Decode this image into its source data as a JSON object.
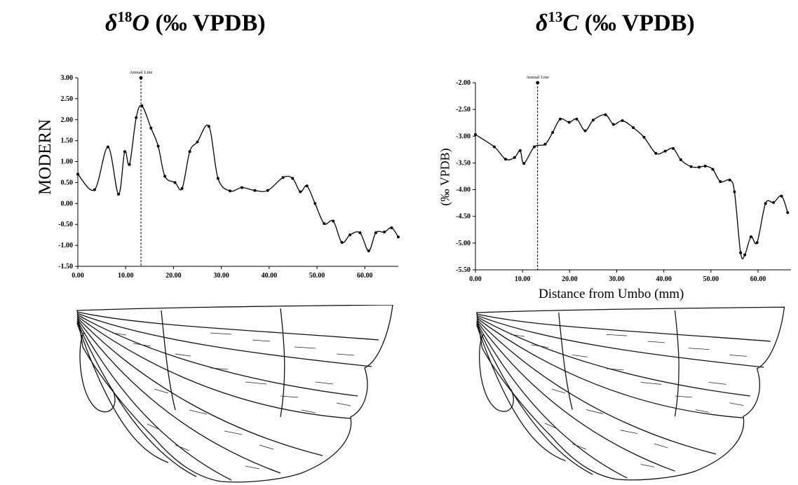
{
  "titles": {
    "left": {
      "symbol": "δ",
      "superscript": "18",
      "element": "O",
      "unit": "(‰ VPDB)"
    },
    "right": {
      "symbol": "δ",
      "superscript": "13",
      "element": "C",
      "unit": "(‰ VPDB)"
    }
  },
  "row_label": "MODERN",
  "colors": {
    "line": "#000000",
    "axis": "#000000",
    "background": "#ffffff"
  },
  "chart_data": [
    {
      "type": "line",
      "title": "δ18O (‰ VPDB)",
      "xlabel": "",
      "ylabel": "",
      "xlim": [
        0,
        67
      ],
      "ylim": [
        -1.5,
        3.0
      ],
      "xticks": [
        "0.00",
        "10.00",
        "20.00",
        "30.00",
        "40.00",
        "50.00",
        "60.00"
      ],
      "yticks": [
        "3.00",
        "2.50",
        "2.00",
        "1.50",
        "1.00",
        "0.50",
        "0.00",
        "-0.50",
        "-1.00",
        "-1.50"
      ],
      "grid": false,
      "annotation": {
        "label": "Annual Line",
        "x": 13.2,
        "top": 3.0
      },
      "series": [
        {
          "x": [
            0.0,
            3.5,
            6.3,
            8.5,
            9.8,
            10.8,
            12.2,
            13.4,
            15.3,
            16.8,
            18.2,
            20.3,
            21.8,
            23.4,
            25.0,
            27.4,
            29.3,
            31.8,
            34.3,
            37.0,
            39.7,
            42.9,
            44.9,
            46.5,
            47.9,
            49.6,
            51.5,
            53.4,
            55.2,
            56.9,
            59.0,
            60.8,
            62.3,
            64.1,
            65.6,
            67.0
          ],
          "y": [
            0.7,
            0.33,
            1.35,
            0.22,
            1.24,
            0.93,
            2.05,
            2.33,
            1.8,
            1.37,
            0.65,
            0.5,
            0.36,
            1.24,
            1.47,
            1.84,
            0.6,
            0.3,
            0.38,
            0.31,
            0.31,
            0.62,
            0.6,
            0.28,
            0.42,
            0.0,
            -0.48,
            -0.42,
            -0.93,
            -0.75,
            -0.7,
            -1.13,
            -0.7,
            -0.68,
            -0.58,
            -0.8
          ]
        }
      ]
    },
    {
      "type": "line",
      "title": "δ13C (‰ VPDB)",
      "xlabel": "Distance from Umbo (mm)",
      "ylabel": "(‰ VPDB)",
      "xlim": [
        0,
        67
      ],
      "ylim": [
        -5.5,
        -2.0
      ],
      "xticks": [
        "0.00",
        "10.00",
        "20.00",
        "30.00",
        "40.00",
        "50.00",
        "60.00"
      ],
      "yticks": [
        "-2.00",
        "-2.50",
        "-3.00",
        "-3.50",
        "-4.00",
        "-4.50",
        "-5.00",
        "-5.50"
      ],
      "grid": false,
      "annotation": {
        "label": "Annual Line",
        "x": 13.2,
        "top": -2.0
      },
      "series": [
        {
          "x": [
            0.0,
            4.0,
            6.4,
            8.3,
            9.5,
            10.3,
            12.5,
            14.8,
            16.4,
            18.0,
            19.9,
            21.5,
            23.3,
            25.0,
            27.6,
            29.3,
            31.2,
            33.5,
            35.8,
            38.3,
            40.3,
            42.0,
            43.6,
            45.8,
            47.5,
            48.8,
            50.4,
            52.0,
            54.0,
            55.0,
            56.3,
            57.2,
            58.5,
            59.8,
            61.6,
            63.3,
            65.0,
            66.3
          ],
          "y": [
            -2.97,
            -3.2,
            -3.43,
            -3.4,
            -3.27,
            -3.51,
            -3.2,
            -3.15,
            -2.93,
            -2.68,
            -2.74,
            -2.68,
            -2.9,
            -2.7,
            -2.6,
            -2.78,
            -2.71,
            -2.84,
            -3.02,
            -3.32,
            -3.28,
            -3.23,
            -3.44,
            -3.57,
            -3.58,
            -3.56,
            -3.62,
            -3.85,
            -3.82,
            -4.04,
            -5.18,
            -5.22,
            -4.88,
            -4.99,
            -4.26,
            -4.24,
            -4.12,
            -4.43
          ]
        }
      ]
    }
  ]
}
